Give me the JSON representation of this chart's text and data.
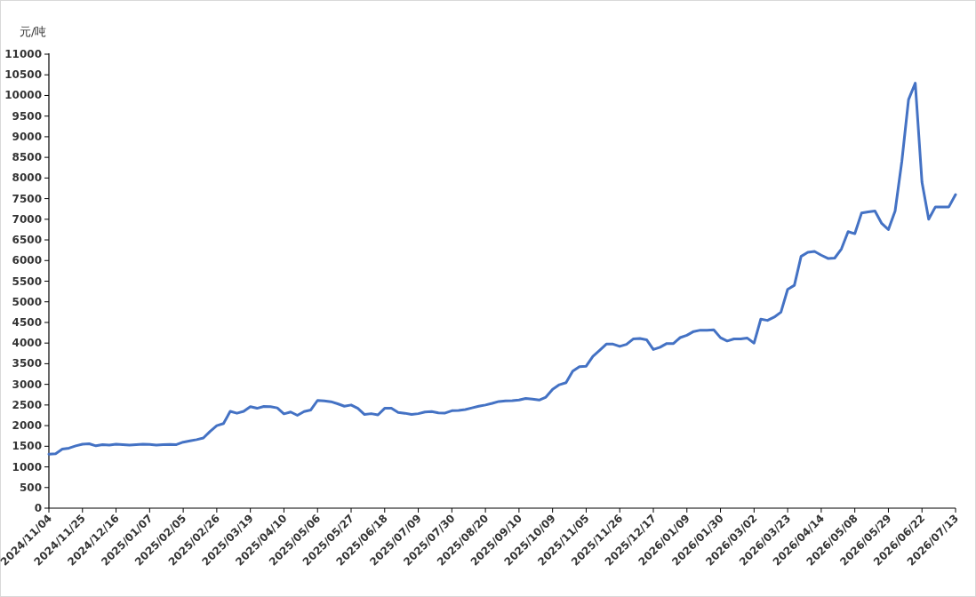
{
  "chart_data": {
    "type": "line",
    "ylabel": "元/吨",
    "categories": [
      "2024/11/04",
      null,
      null,
      null,
      null,
      "2024/11/25",
      null,
      null,
      null,
      null,
      "2024/12/16",
      null,
      null,
      null,
      null,
      "2025/01/07",
      null,
      null,
      null,
      null,
      "2025/02/05",
      null,
      null,
      null,
      null,
      "2025/02/26",
      null,
      null,
      null,
      null,
      "2025/03/19",
      null,
      null,
      null,
      null,
      "2025/04/10",
      null,
      null,
      null,
      null,
      "2025/05/06",
      null,
      null,
      null,
      null,
      "2025/05/27",
      null,
      null,
      null,
      null,
      "2025/06/18",
      null,
      null,
      null,
      null,
      "2025/07/09",
      null,
      null,
      null,
      null,
      "2025/07/30",
      null,
      null,
      null,
      null,
      "2025/08/20",
      null,
      null,
      null,
      null,
      "2025/09/10",
      null,
      null,
      null,
      null,
      "2025/10/09",
      null,
      null,
      null,
      null,
      "2025/11/05",
      null,
      null,
      null,
      null,
      "2025/11/26",
      null,
      null,
      null,
      null,
      "2025/12/17",
      null,
      null,
      null,
      null,
      "2026/01/09",
      null,
      null,
      null,
      null,
      "2026/01/30",
      null,
      null,
      null,
      null,
      "2026/03/02",
      null,
      null,
      null,
      null,
      "2026/03/23",
      null,
      null,
      null,
      null,
      "2026/04/14",
      null,
      null,
      null,
      null,
      "2026/05/08",
      null,
      null,
      null,
      null,
      "2026/05/29",
      null,
      null,
      null,
      null,
      "2026/06/22",
      null,
      null,
      null,
      null,
      "2026/07/13"
    ],
    "values": [
      1310,
      1320,
      1430,
      1455,
      1510,
      1550,
      1560,
      1510,
      1540,
      1530,
      1550,
      1540,
      1530,
      1540,
      1550,
      1545,
      1530,
      1540,
      1545,
      1540,
      1600,
      1630,
      1660,
      1700,
      1860,
      2000,
      2050,
      2345,
      2300,
      2345,
      2460,
      2420,
      2465,
      2460,
      2430,
      2285,
      2330,
      2250,
      2340,
      2380,
      2610,
      2600,
      2580,
      2530,
      2470,
      2500,
      2420,
      2270,
      2290,
      2260,
      2420,
      2420,
      2320,
      2300,
      2270,
      2290,
      2330,
      2340,
      2310,
      2305,
      2360,
      2370,
      2390,
      2430,
      2470,
      2500,
      2540,
      2585,
      2600,
      2605,
      2620,
      2660,
      2640,
      2620,
      2690,
      2880,
      2990,
      3040,
      3320,
      3430,
      3440,
      3680,
      3825,
      3976,
      3976,
      3920,
      3968,
      4100,
      4110,
      4080,
      3845,
      3900,
      3990,
      3990,
      4133,
      4190,
      4280,
      4313,
      4310,
      4320,
      4130,
      4050,
      4100,
      4100,
      4120,
      4000,
      4580,
      4550,
      4630,
      4750,
      5300,
      5400,
      6100,
      6200,
      6220,
      6130,
      6050,
      6060,
      6280,
      6700,
      6650,
      7150,
      7180,
      7200,
      6900,
      6750,
      7200,
      8400,
      9900,
      10300,
      7900,
      7000,
      7300,
      7300,
      7300,
      7600
    ],
    "color": "#4472c4",
    "ylim": [
      0,
      11000
    ],
    "yticks": [
      0,
      500,
      1000,
      1500,
      2000,
      2500,
      3000,
      3500,
      4000,
      4500,
      5000,
      5500,
      6000,
      6500,
      7000,
      7500,
      8000,
      8500,
      9000,
      9500,
      10000,
      10500,
      11000
    ]
  }
}
